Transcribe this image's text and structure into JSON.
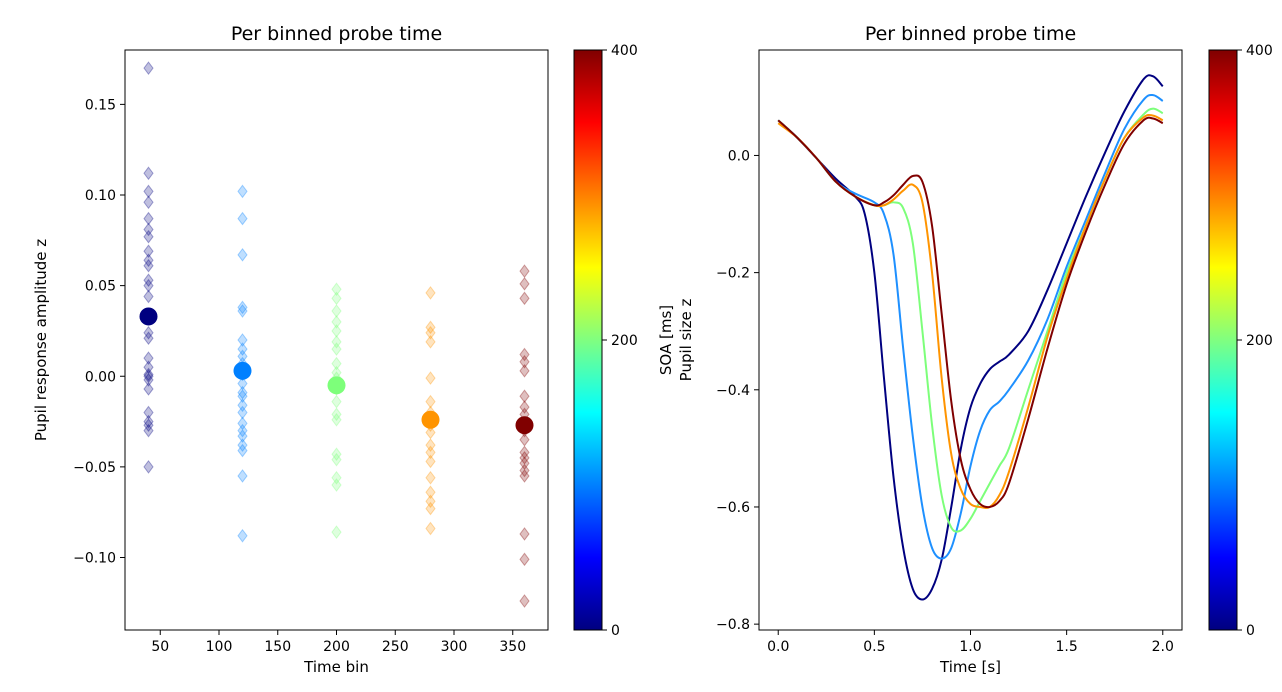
{
  "chart_data": [
    {
      "type": "scatter",
      "title": "Per binned probe time",
      "xlabel": "Time bin",
      "ylabel": "Pupil response amplitude z",
      "xlim": [
        20,
        380
      ],
      "ylim": [
        -0.14,
        0.18
      ],
      "xticks": [
        50,
        100,
        150,
        200,
        250,
        300,
        350
      ],
      "yticks": [
        -0.1,
        -0.05,
        0.0,
        0.05,
        0.1,
        0.15
      ],
      "ytick_labels": [
        "−0.10",
        "−0.05",
        "0.00",
        "0.05",
        "0.10",
        "0.15"
      ],
      "grid": false,
      "series": [
        {
          "x": 40,
          "color": "#000080",
          "points": [
            0.17,
            0.112,
            0.102,
            0.096,
            0.087,
            0.081,
            0.077,
            0.069,
            0.064,
            0.061,
            0.053,
            0.05,
            0.044,
            0.024,
            0.021,
            0.01,
            0.005,
            0.001,
            0.0,
            -0.002,
            -0.007,
            -0.02,
            -0.025,
            -0.027,
            -0.03,
            -0.05
          ],
          "mean": 0.033
        },
        {
          "x": 120,
          "color": "#0080ff",
          "points": [
            0.102,
            0.087,
            0.067,
            0.038,
            0.036,
            0.02,
            0.015,
            0.011,
            0.007,
            0.004,
            0.001,
            -0.004,
            -0.009,
            -0.011,
            -0.016,
            -0.02,
            -0.026,
            -0.03,
            -0.033,
            -0.038,
            -0.041,
            -0.055,
            -0.088
          ],
          "mean": 0.003
        },
        {
          "x": 200,
          "color": "#7dff7a",
          "points": [
            0.048,
            0.043,
            0.036,
            0.03,
            0.025,
            0.019,
            0.015,
            0.007,
            0.002,
            -0.001,
            -0.007,
            -0.014,
            -0.021,
            -0.024,
            -0.043,
            -0.046,
            -0.056,
            -0.06,
            -0.086
          ],
          "mean": -0.005
        },
        {
          "x": 280,
          "color": "#ff9400",
          "points": [
            0.046,
            0.027,
            0.024,
            0.019,
            -0.001,
            -0.014,
            -0.02,
            -0.027,
            -0.031,
            -0.038,
            -0.042,
            -0.047,
            -0.056,
            -0.064,
            -0.069,
            -0.073,
            -0.084
          ],
          "mean": -0.024
        },
        {
          "x": 360,
          "color": "#800000",
          "points": [
            0.058,
            0.051,
            0.043,
            0.012,
            0.008,
            0.003,
            -0.011,
            -0.017,
            -0.021,
            -0.027,
            -0.03,
            -0.035,
            -0.042,
            -0.045,
            -0.048,
            -0.052,
            -0.055,
            -0.087,
            -0.101,
            -0.124
          ],
          "mean": -0.027
        }
      ]
    },
    {
      "type": "line",
      "title": "Per binned probe time",
      "xlabel": "Time [s]",
      "ylabel": "Pupil size z",
      "xlim": [
        -0.1,
        2.1
      ],
      "ylim": [
        -0.81,
        0.18
      ],
      "xticks": [
        0.0,
        0.5,
        1.0,
        1.5,
        2.0
      ],
      "xtick_labels": [
        "0.0",
        "0.5",
        "1.0",
        "1.5",
        "2.0"
      ],
      "yticks": [
        -0.8,
        -0.6,
        -0.4,
        -0.2,
        0.0
      ],
      "ytick_labels": [
        "−0.8",
        "−0.6",
        "−0.4",
        "−0.2",
        "0.0"
      ],
      "grid": false,
      "series": [
        {
          "color": "#000080",
          "points": [
            [
              0.0,
              0.06
            ],
            [
              0.1,
              0.03
            ],
            [
              0.2,
              -0.005
            ],
            [
              0.3,
              -0.04
            ],
            [
              0.4,
              -0.07
            ],
            [
              0.45,
              -0.1
            ],
            [
              0.5,
              -0.2
            ],
            [
              0.55,
              -0.38
            ],
            [
              0.6,
              -0.55
            ],
            [
              0.65,
              -0.67
            ],
            [
              0.7,
              -0.74
            ],
            [
              0.75,
              -0.758
            ],
            [
              0.8,
              -0.74
            ],
            [
              0.85,
              -0.69
            ],
            [
              0.9,
              -0.6
            ],
            [
              0.95,
              -0.5
            ],
            [
              1.0,
              -0.43
            ],
            [
              1.05,
              -0.39
            ],
            [
              1.1,
              -0.365
            ],
            [
              1.15,
              -0.352
            ],
            [
              1.2,
              -0.34
            ],
            [
              1.3,
              -0.3
            ],
            [
              1.4,
              -0.23
            ],
            [
              1.5,
              -0.15
            ],
            [
              1.6,
              -0.07
            ],
            [
              1.7,
              0.005
            ],
            [
              1.8,
              0.075
            ],
            [
              1.9,
              0.13
            ],
            [
              1.95,
              0.135
            ],
            [
              2.0,
              0.118
            ]
          ]
        },
        {
          "color": "#1e90ff",
          "points": [
            [
              0.0,
              0.06
            ],
            [
              0.1,
              0.03
            ],
            [
              0.2,
              -0.005
            ],
            [
              0.3,
              -0.045
            ],
            [
              0.4,
              -0.065
            ],
            [
              0.5,
              -0.08
            ],
            [
              0.55,
              -0.1
            ],
            [
              0.6,
              -0.17
            ],
            [
              0.65,
              -0.33
            ],
            [
              0.7,
              -0.48
            ],
            [
              0.75,
              -0.6
            ],
            [
              0.8,
              -0.67
            ],
            [
              0.85,
              -0.688
            ],
            [
              0.9,
              -0.67
            ],
            [
              0.95,
              -0.61
            ],
            [
              1.0,
              -0.53
            ],
            [
              1.05,
              -0.47
            ],
            [
              1.1,
              -0.435
            ],
            [
              1.15,
              -0.42
            ],
            [
              1.2,
              -0.4
            ],
            [
              1.3,
              -0.35
            ],
            [
              1.4,
              -0.28
            ],
            [
              1.5,
              -0.19
            ],
            [
              1.6,
              -0.11
            ],
            [
              1.7,
              -0.03
            ],
            [
              1.8,
              0.045
            ],
            [
              1.9,
              0.095
            ],
            [
              1.95,
              0.103
            ],
            [
              2.0,
              0.093
            ]
          ]
        },
        {
          "color": "#7dff7a",
          "points": [
            [
              0.0,
              0.06
            ],
            [
              0.1,
              0.03
            ],
            [
              0.2,
              -0.005
            ],
            [
              0.3,
              -0.045
            ],
            [
              0.4,
              -0.07
            ],
            [
              0.5,
              -0.085
            ],
            [
              0.55,
              -0.085
            ],
            [
              0.6,
              -0.08
            ],
            [
              0.65,
              -0.09
            ],
            [
              0.7,
              -0.15
            ],
            [
              0.75,
              -0.3
            ],
            [
              0.8,
              -0.46
            ],
            [
              0.85,
              -0.58
            ],
            [
              0.9,
              -0.635
            ],
            [
              0.95,
              -0.64
            ],
            [
              1.0,
              -0.62
            ],
            [
              1.05,
              -0.59
            ],
            [
              1.1,
              -0.56
            ],
            [
              1.15,
              -0.53
            ],
            [
              1.2,
              -0.5
            ],
            [
              1.3,
              -0.4
            ],
            [
              1.4,
              -0.3
            ],
            [
              1.5,
              -0.2
            ],
            [
              1.6,
              -0.12
            ],
            [
              1.7,
              -0.04
            ],
            [
              1.8,
              0.03
            ],
            [
              1.9,
              0.07
            ],
            [
              1.95,
              0.08
            ],
            [
              2.0,
              0.072
            ]
          ]
        },
        {
          "color": "#ff9400",
          "points": [
            [
              0.0,
              0.055
            ],
            [
              0.1,
              0.03
            ],
            [
              0.2,
              -0.005
            ],
            [
              0.3,
              -0.045
            ],
            [
              0.4,
              -0.07
            ],
            [
              0.5,
              -0.085
            ],
            [
              0.55,
              -0.085
            ],
            [
              0.6,
              -0.075
            ],
            [
              0.65,
              -0.06
            ],
            [
              0.7,
              -0.05
            ],
            [
              0.75,
              -0.08
            ],
            [
              0.8,
              -0.2
            ],
            [
              0.85,
              -0.38
            ],
            [
              0.9,
              -0.51
            ],
            [
              0.95,
              -0.57
            ],
            [
              1.0,
              -0.595
            ],
            [
              1.05,
              -0.6
            ],
            [
              1.1,
              -0.6
            ],
            [
              1.15,
              -0.58
            ],
            [
              1.2,
              -0.54
            ],
            [
              1.3,
              -0.43
            ],
            [
              1.4,
              -0.31
            ],
            [
              1.5,
              -0.21
            ],
            [
              1.6,
              -0.12
            ],
            [
              1.7,
              -0.04
            ],
            [
              1.8,
              0.03
            ],
            [
              1.9,
              0.065
            ],
            [
              1.95,
              0.068
            ],
            [
              2.0,
              0.06
            ]
          ]
        },
        {
          "color": "#800000",
          "points": [
            [
              0.0,
              0.06
            ],
            [
              0.1,
              0.03
            ],
            [
              0.2,
              -0.005
            ],
            [
              0.3,
              -0.045
            ],
            [
              0.4,
              -0.07
            ],
            [
              0.5,
              -0.085
            ],
            [
              0.55,
              -0.08
            ],
            [
              0.6,
              -0.068
            ],
            [
              0.65,
              -0.05
            ],
            [
              0.7,
              -0.035
            ],
            [
              0.75,
              -0.045
            ],
            [
              0.8,
              -0.12
            ],
            [
              0.85,
              -0.27
            ],
            [
              0.9,
              -0.42
            ],
            [
              0.95,
              -0.52
            ],
            [
              1.0,
              -0.57
            ],
            [
              1.05,
              -0.595
            ],
            [
              1.1,
              -0.6
            ],
            [
              1.15,
              -0.59
            ],
            [
              1.2,
              -0.56
            ],
            [
              1.3,
              -0.45
            ],
            [
              1.4,
              -0.33
            ],
            [
              1.5,
              -0.22
            ],
            [
              1.6,
              -0.13
            ],
            [
              1.7,
              -0.05
            ],
            [
              1.8,
              0.02
            ],
            [
              1.9,
              0.06
            ],
            [
              1.95,
              0.063
            ],
            [
              2.0,
              0.055
            ]
          ]
        }
      ]
    }
  ],
  "colorbars": [
    {
      "label": "SOA [ms]",
      "ticks": [
        0,
        200,
        400
      ],
      "tick_labels": [
        "0",
        "200",
        "400"
      ],
      "colormap": "jet",
      "range": [
        0,
        400
      ]
    },
    {
      "label": "",
      "ticks": [
        0,
        200,
        400
      ],
      "tick_labels": [
        "0",
        "200",
        "400"
      ],
      "colormap": "jet",
      "range": [
        0,
        400
      ]
    }
  ],
  "colormap_stops": [
    "#000080",
    "#0000ff",
    "#0080ff",
    "#00ffff",
    "#80ff80",
    "#ffff00",
    "#ff8000",
    "#ff0000",
    "#800000"
  ]
}
